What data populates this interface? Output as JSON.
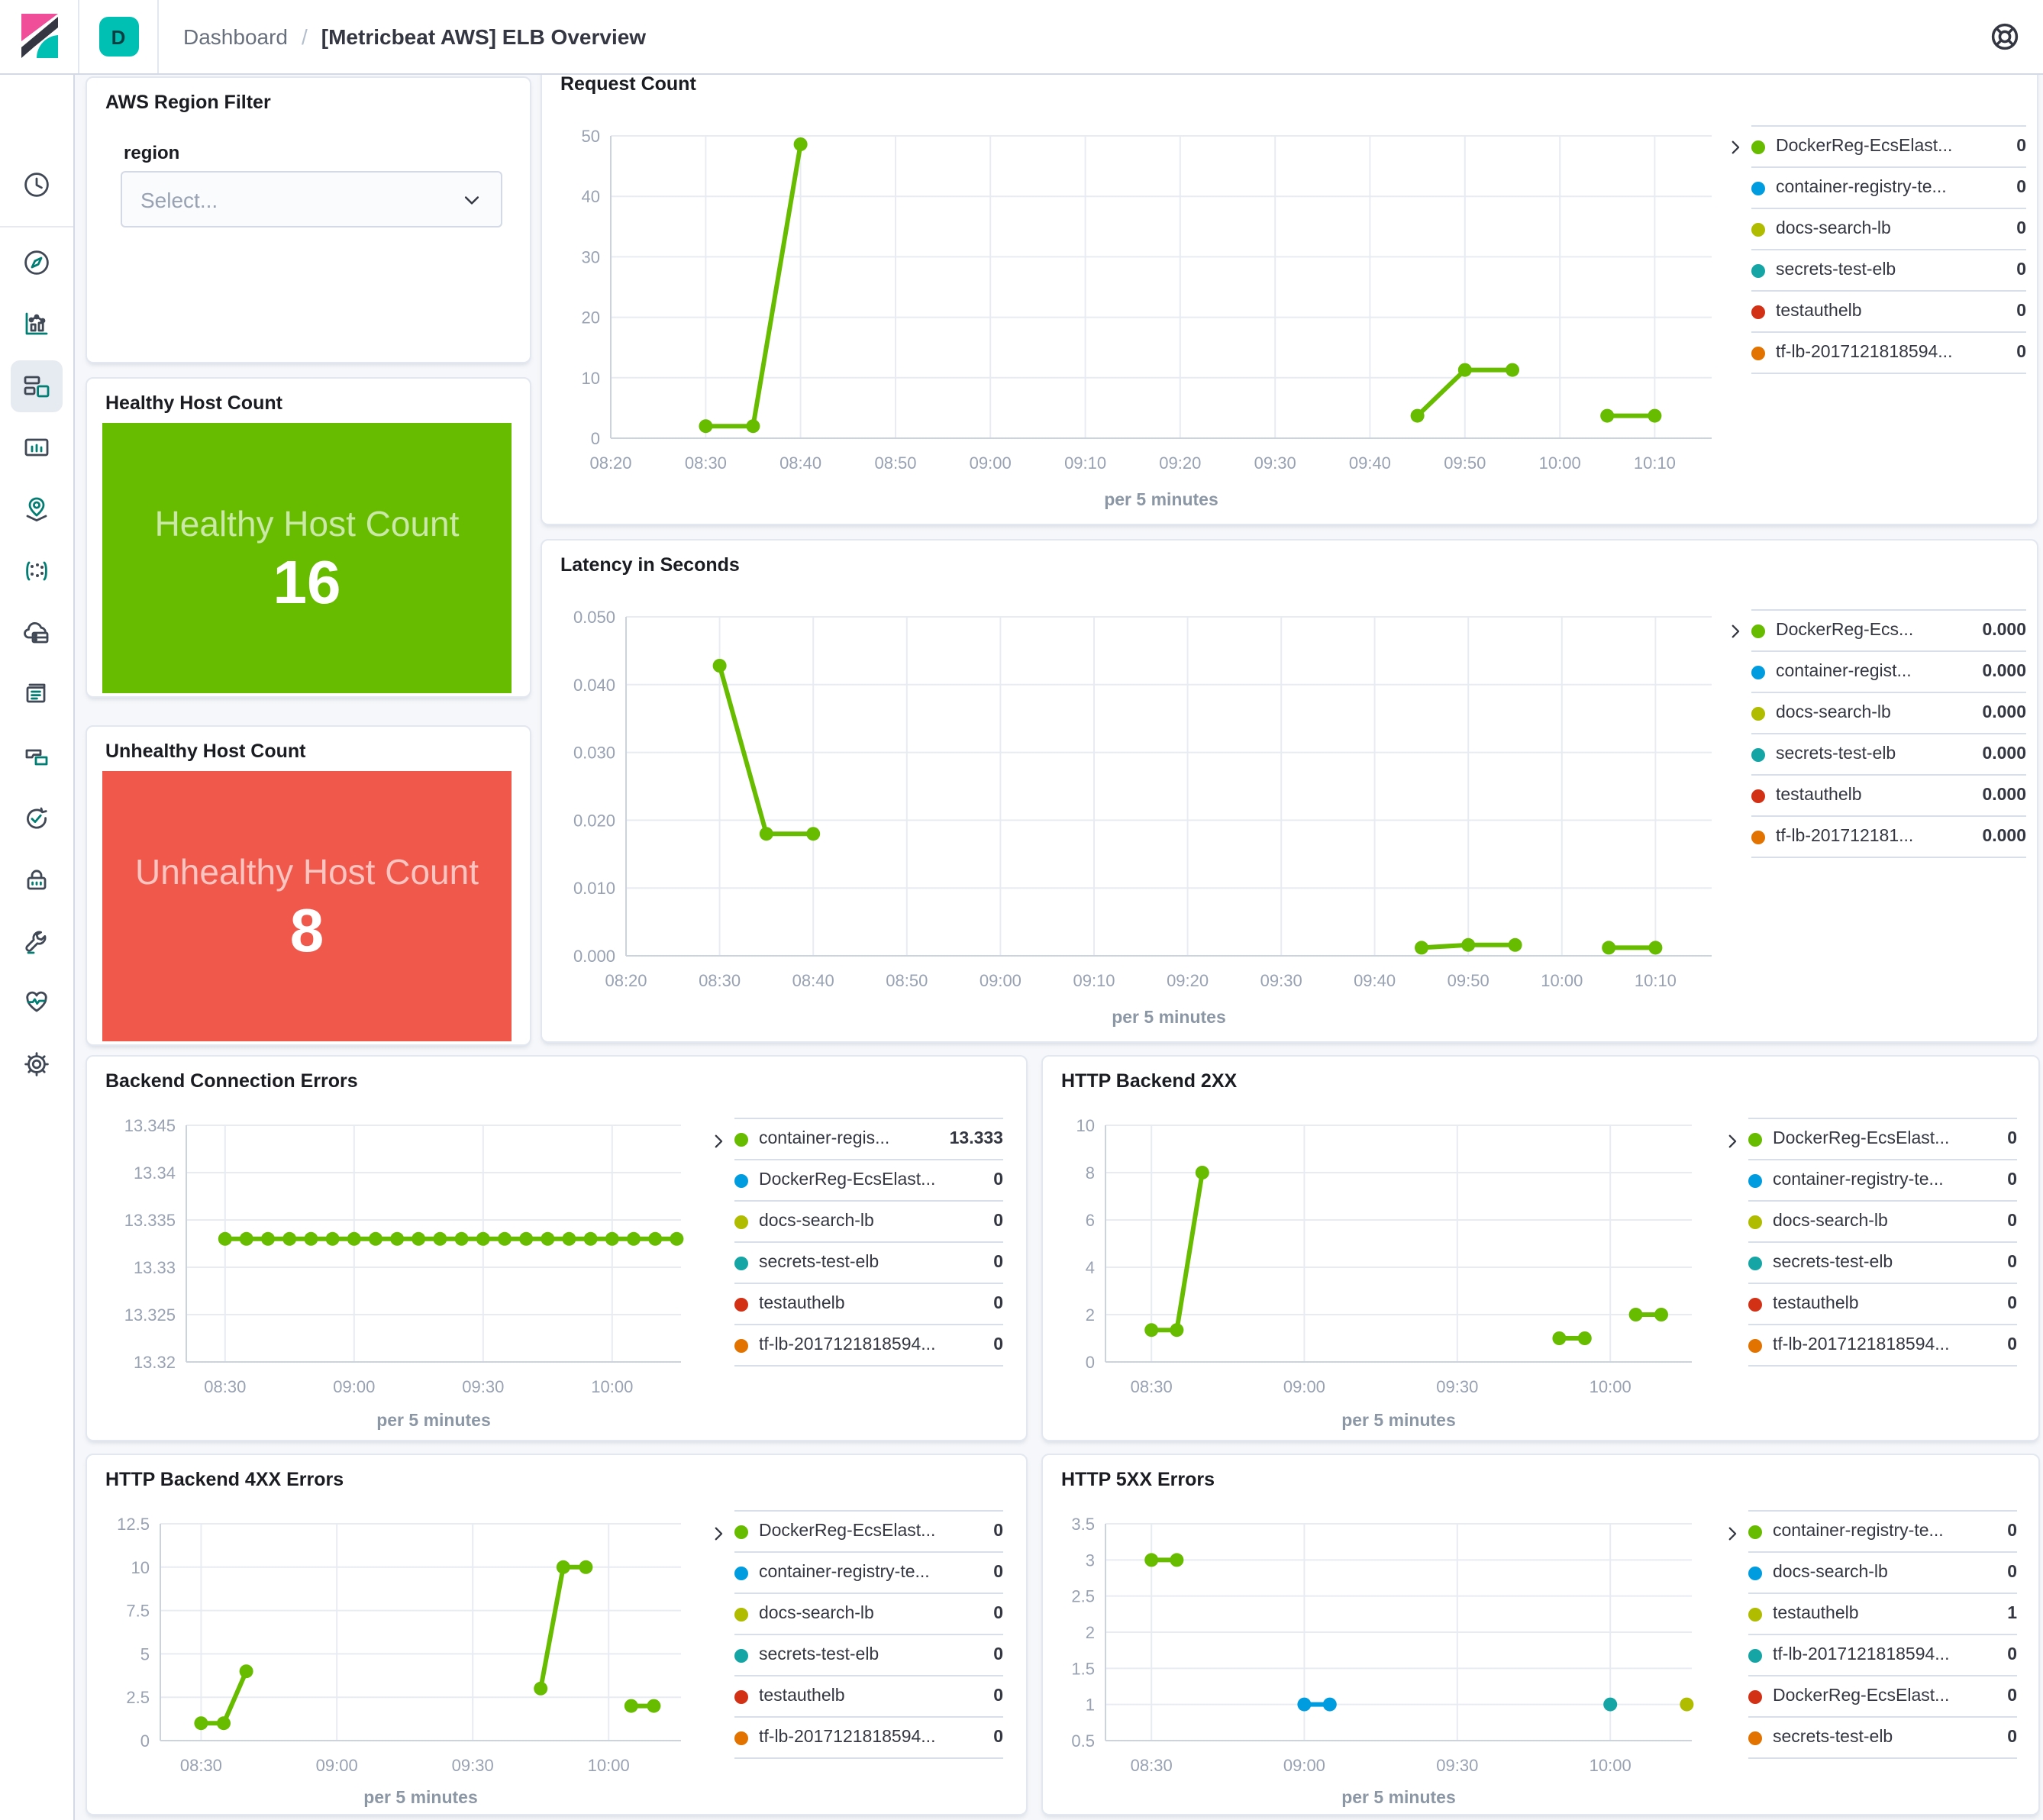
{
  "topbar": {
    "badge": "D",
    "breadcrumb_root": "Dashboard",
    "breadcrumb_sep": "/",
    "breadcrumb_current": "[Metricbeat AWS] ELB Overview"
  },
  "sidebar": {
    "icons": [
      "clock-icon",
      "compass-icon",
      "visualize-icon",
      "dashboard-icon",
      "canvas-icon",
      "maps-icon",
      "machine-learning-icon",
      "infrastructure-icon",
      "logs-icon",
      "apm-icon",
      "uptime-icon",
      "siem-icon",
      "dev-tools-icon",
      "monitoring-icon",
      "management-icon",
      "collapse-icon"
    ],
    "selected": "dashboard"
  },
  "region_filter": {
    "title": "AWS Region Filter",
    "label": "region",
    "placeholder": "Select..."
  },
  "healthy": {
    "title": "Healthy Host Count",
    "label": "Healthy Host Count",
    "value": "16",
    "color": "#68BC00"
  },
  "unhealthy": {
    "title": "Unhealthy Host Count",
    "label": "Unhealthy Host Count",
    "value": "8",
    "color": "#F0584C"
  },
  "palette": {
    "green": "#68BC00",
    "blue": "#009CE0",
    "olive": "#B0BC00",
    "teal": "#16A5A5",
    "red": "#D33115",
    "orange": "#E27300"
  },
  "chart_data": [
    {
      "id": "request-count",
      "type": "line",
      "title": "Request Count",
      "xlabel": "per 5 minutes",
      "x_domain": [
        500,
        616
      ],
      "y_domain": [
        0,
        50
      ],
      "x_ticks": [
        {
          "v": 500,
          "label": "08:20"
        },
        {
          "v": 510,
          "label": "08:30"
        },
        {
          "v": 520,
          "label": "08:40"
        },
        {
          "v": 530,
          "label": "08:50"
        },
        {
          "v": 540,
          "label": "09:00"
        },
        {
          "v": 550,
          "label": "09:10"
        },
        {
          "v": 560,
          "label": "09:20"
        },
        {
          "v": 570,
          "label": "09:30"
        },
        {
          "v": 580,
          "label": "09:40"
        },
        {
          "v": 590,
          "label": "09:50"
        },
        {
          "v": 600,
          "label": "10:00"
        },
        {
          "v": 610,
          "label": "10:10"
        }
      ],
      "y_ticks": [
        {
          "v": 0,
          "label": "0"
        },
        {
          "v": 10,
          "label": "10"
        },
        {
          "v": 20,
          "label": "20"
        },
        {
          "v": 30,
          "label": "30"
        },
        {
          "v": 40,
          "label": "40"
        },
        {
          "v": 50,
          "label": "50"
        }
      ],
      "series": [
        {
          "name": "DockerReg-EcsElast...",
          "color": "#68BC00",
          "segments": [
            [
              [
                510,
                2
              ],
              [
                515,
                2
              ],
              [
                520,
                48.6
              ]
            ],
            [
              [
                585,
                3.7
              ],
              [
                590,
                11.3
              ],
              [
                595,
                11.3
              ]
            ],
            [
              [
                605,
                3.7
              ],
              [
                610,
                3.7
              ]
            ]
          ]
        }
      ],
      "legend": [
        {
          "color": "#68BC00",
          "label": "DockerReg-EcsElast...",
          "value": "0"
        },
        {
          "color": "#009CE0",
          "label": "container-registry-te...",
          "value": "0"
        },
        {
          "color": "#B0BC00",
          "label": "docs-search-lb",
          "value": "0"
        },
        {
          "color": "#16A5A5",
          "label": "secrets-test-elb",
          "value": "0"
        },
        {
          "color": "#D33115",
          "label": "testauthelb",
          "value": "0"
        },
        {
          "color": "#E27300",
          "label": "tf-lb-2017121818594...",
          "value": "0"
        }
      ]
    },
    {
      "id": "latency",
      "type": "line",
      "title": "Latency in Seconds",
      "xlabel": "per 5 minutes",
      "x_domain": [
        500,
        616
      ],
      "y_domain": [
        0,
        0.05
      ],
      "x_ticks": [
        {
          "v": 500,
          "label": "08:20"
        },
        {
          "v": 510,
          "label": "08:30"
        },
        {
          "v": 520,
          "label": "08:40"
        },
        {
          "v": 530,
          "label": "08:50"
        },
        {
          "v": 540,
          "label": "09:00"
        },
        {
          "v": 550,
          "label": "09:10"
        },
        {
          "v": 560,
          "label": "09:20"
        },
        {
          "v": 570,
          "label": "09:30"
        },
        {
          "v": 580,
          "label": "09:40"
        },
        {
          "v": 590,
          "label": "09:50"
        },
        {
          "v": 600,
          "label": "10:00"
        },
        {
          "v": 610,
          "label": "10:10"
        }
      ],
      "y_ticks": [
        {
          "v": 0,
          "label": "0.000"
        },
        {
          "v": 0.01,
          "label": "0.010"
        },
        {
          "v": 0.02,
          "label": "0.020"
        },
        {
          "v": 0.03,
          "label": "0.030"
        },
        {
          "v": 0.04,
          "label": "0.040"
        },
        {
          "v": 0.05,
          "label": "0.050"
        }
      ],
      "series": [
        {
          "name": "DockerReg-Ecs...",
          "color": "#68BC00",
          "segments": [
            [
              [
                510,
                0.0428
              ],
              [
                515,
                0.018
              ],
              [
                520,
                0.018
              ]
            ],
            [
              [
                585,
                0.0012
              ],
              [
                590,
                0.0016
              ],
              [
                595,
                0.0016
              ]
            ],
            [
              [
                605,
                0.0012
              ],
              [
                610,
                0.0012
              ]
            ]
          ]
        }
      ],
      "legend": [
        {
          "color": "#68BC00",
          "label": "DockerReg-Ecs...",
          "value": "0.000"
        },
        {
          "color": "#009CE0",
          "label": "container-regist...",
          "value": "0.000"
        },
        {
          "color": "#B0BC00",
          "label": "docs-search-lb",
          "value": "0.000"
        },
        {
          "color": "#16A5A5",
          "label": "secrets-test-elb",
          "value": "0.000"
        },
        {
          "color": "#D33115",
          "label": "testauthelb",
          "value": "0.000"
        },
        {
          "color": "#E27300",
          "label": "tf-lb-201712181...",
          "value": "0.000"
        }
      ]
    },
    {
      "id": "backend-connection-errors",
      "type": "line",
      "title": "Backend Connection Errors",
      "xlabel": "per 5 minutes",
      "x_domain": [
        501,
        616
      ],
      "y_domain": [
        13.32,
        13.345
      ],
      "x_ticks": [
        {
          "v": 510,
          "label": "08:30"
        },
        {
          "v": 540,
          "label": "09:00"
        },
        {
          "v": 570,
          "label": "09:30"
        },
        {
          "v": 600,
          "label": "10:00"
        }
      ],
      "y_ticks": [
        {
          "v": 13.32,
          "label": "13.32"
        },
        {
          "v": 13.325,
          "label": "13.325"
        },
        {
          "v": 13.33,
          "label": "13.33"
        },
        {
          "v": 13.335,
          "label": "13.335"
        },
        {
          "v": 13.34,
          "label": "13.34"
        },
        {
          "v": 13.345,
          "label": "13.345"
        }
      ],
      "series": [
        {
          "name": "container-regis...",
          "color": "#68BC00",
          "segments": [
            [
              [
                510,
                13.333
              ],
              [
                515,
                13.333
              ],
              [
                520,
                13.333
              ],
              [
                525,
                13.333
              ],
              [
                530,
                13.333
              ],
              [
                535,
                13.333
              ],
              [
                540,
                13.333
              ],
              [
                545,
                13.333
              ],
              [
                550,
                13.333
              ],
              [
                555,
                13.333
              ],
              [
                560,
                13.333
              ],
              [
                565,
                13.333
              ],
              [
                570,
                13.333
              ],
              [
                575,
                13.333
              ],
              [
                580,
                13.333
              ],
              [
                585,
                13.333
              ],
              [
                590,
                13.333
              ],
              [
                595,
                13.333
              ],
              [
                600,
                13.333
              ],
              [
                605,
                13.333
              ],
              [
                610,
                13.333
              ],
              [
                615,
                13.333
              ]
            ]
          ]
        }
      ],
      "legend": [
        {
          "color": "#68BC00",
          "label": "container-regis...",
          "value": "13.333"
        },
        {
          "color": "#009CE0",
          "label": "DockerReg-EcsElast...",
          "value": "0"
        },
        {
          "color": "#B0BC00",
          "label": "docs-search-lb",
          "value": "0"
        },
        {
          "color": "#16A5A5",
          "label": "secrets-test-elb",
          "value": "0"
        },
        {
          "color": "#D33115",
          "label": "testauthelb",
          "value": "0"
        },
        {
          "color": "#E27300",
          "label": "tf-lb-2017121818594...",
          "value": "0"
        }
      ]
    },
    {
      "id": "http-backend-2xx",
      "type": "line",
      "title": "HTTP Backend 2XX",
      "xlabel": "per 5 minutes",
      "x_domain": [
        501,
        616
      ],
      "y_domain": [
        0,
        10
      ],
      "x_ticks": [
        {
          "v": 510,
          "label": "08:30"
        },
        {
          "v": 540,
          "label": "09:00"
        },
        {
          "v": 570,
          "label": "09:30"
        },
        {
          "v": 600,
          "label": "10:00"
        }
      ],
      "y_ticks": [
        {
          "v": 0,
          "label": "0"
        },
        {
          "v": 2,
          "label": "2"
        },
        {
          "v": 4,
          "label": "4"
        },
        {
          "v": 6,
          "label": "6"
        },
        {
          "v": 8,
          "label": "8"
        },
        {
          "v": 10,
          "label": "10"
        }
      ],
      "series": [
        {
          "name": "DockerReg-EcsElast...",
          "color": "#68BC00",
          "segments": [
            [
              [
                510,
                1.35
              ],
              [
                515,
                1.35
              ],
              [
                520,
                8
              ]
            ],
            [
              [
                590,
                1
              ],
              [
                595,
                1
              ]
            ],
            [
              [
                605,
                2
              ],
              [
                610,
                2
              ]
            ]
          ]
        }
      ],
      "legend": [
        {
          "color": "#68BC00",
          "label": "DockerReg-EcsElast...",
          "value": "0"
        },
        {
          "color": "#009CE0",
          "label": "container-registry-te...",
          "value": "0"
        },
        {
          "color": "#B0BC00",
          "label": "docs-search-lb",
          "value": "0"
        },
        {
          "color": "#16A5A5",
          "label": "secrets-test-elb",
          "value": "0"
        },
        {
          "color": "#D33115",
          "label": "testauthelb",
          "value": "0"
        },
        {
          "color": "#E27300",
          "label": "tf-lb-2017121818594...",
          "value": "0"
        }
      ]
    },
    {
      "id": "http-backend-4xx",
      "type": "line",
      "title": "HTTP Backend 4XX Errors",
      "xlabel": "per 5 minutes",
      "x_domain": [
        501,
        616
      ],
      "y_domain": [
        0,
        12.5
      ],
      "x_ticks": [
        {
          "v": 510,
          "label": "08:30"
        },
        {
          "v": 540,
          "label": "09:00"
        },
        {
          "v": 570,
          "label": "09:30"
        },
        {
          "v": 600,
          "label": "10:00"
        }
      ],
      "y_ticks": [
        {
          "v": 0,
          "label": "0"
        },
        {
          "v": 2.5,
          "label": "2.5"
        },
        {
          "v": 5,
          "label": "5"
        },
        {
          "v": 7.5,
          "label": "7.5"
        },
        {
          "v": 10,
          "label": "10"
        },
        {
          "v": 12.5,
          "label": "12.5"
        }
      ],
      "series": [
        {
          "name": "DockerReg-EcsElast...",
          "color": "#68BC00",
          "segments": [
            [
              [
                510,
                1
              ],
              [
                515,
                1
              ],
              [
                520,
                4
              ]
            ],
            [
              [
                585,
                3
              ],
              [
                590,
                10
              ],
              [
                595,
                10
              ]
            ],
            [
              [
                605,
                2
              ],
              [
                610,
                2
              ]
            ]
          ]
        }
      ],
      "legend": [
        {
          "color": "#68BC00",
          "label": "DockerReg-EcsElast...",
          "value": "0"
        },
        {
          "color": "#009CE0",
          "label": "container-registry-te...",
          "value": "0"
        },
        {
          "color": "#B0BC00",
          "label": "docs-search-lb",
          "value": "0"
        },
        {
          "color": "#16A5A5",
          "label": "secrets-test-elb",
          "value": "0"
        },
        {
          "color": "#D33115",
          "label": "testauthelb",
          "value": "0"
        },
        {
          "color": "#E27300",
          "label": "tf-lb-2017121818594...",
          "value": "0"
        }
      ]
    },
    {
      "id": "http-5xx",
      "type": "line",
      "title": "HTTP 5XX Errors",
      "xlabel": "per 5 minutes",
      "x_domain": [
        501,
        616
      ],
      "y_domain": [
        0.5,
        3.5
      ],
      "x_ticks": [
        {
          "v": 510,
          "label": "08:30"
        },
        {
          "v": 540,
          "label": "09:00"
        },
        {
          "v": 570,
          "label": "09:30"
        },
        {
          "v": 600,
          "label": "10:00"
        }
      ],
      "y_ticks": [
        {
          "v": 0.5,
          "label": "0.5"
        },
        {
          "v": 1,
          "label": "1"
        },
        {
          "v": 1.5,
          "label": "1.5"
        },
        {
          "v": 2,
          "label": "2"
        },
        {
          "v": 2.5,
          "label": "2.5"
        },
        {
          "v": 3,
          "label": "3"
        },
        {
          "v": 3.5,
          "label": "3.5"
        }
      ],
      "series": [
        {
          "name": "container-registry-te...",
          "color": "#68BC00",
          "segments": [
            [
              [
                510,
                3
              ],
              [
                515,
                3
              ]
            ]
          ]
        },
        {
          "name": "docs-search-lb",
          "color": "#009CE0",
          "segments": [
            [
              [
                540,
                1
              ],
              [
                545,
                1
              ]
            ]
          ]
        },
        {
          "name": "tf-lb-2017121818594...",
          "color": "#16A5A5",
          "segments": [
            [
              [
                600,
                1
              ]
            ]
          ]
        },
        {
          "name": "testauthelb",
          "color": "#B0BC00",
          "segments": [
            [
              [
                615,
                1
              ]
            ]
          ]
        }
      ],
      "legend": [
        {
          "color": "#68BC00",
          "label": "container-registry-te...",
          "value": "0"
        },
        {
          "color": "#009CE0",
          "label": "docs-search-lb",
          "value": "0"
        },
        {
          "color": "#B0BC00",
          "label": "testauthelb",
          "value": "1"
        },
        {
          "color": "#16A5A5",
          "label": "tf-lb-2017121818594...",
          "value": "0"
        },
        {
          "color": "#D33115",
          "label": "DockerReg-EcsElast...",
          "value": "0"
        },
        {
          "color": "#E27300",
          "label": "secrets-test-elb",
          "value": "0"
        }
      ]
    }
  ]
}
